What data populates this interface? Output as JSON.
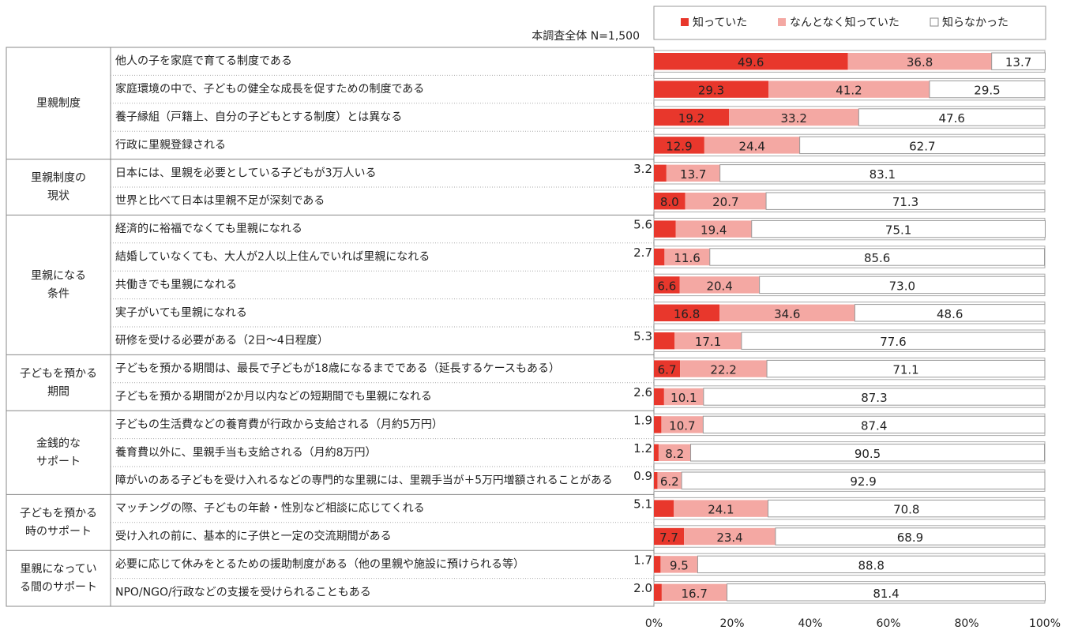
{
  "chart_data": {
    "type": "stacked-barh",
    "subtitle": "本調査全体 N=1,500",
    "groups": [
      {
        "label": "里親制度",
        "categories": [
          "他人の子を家庭で育てる制度である",
          "家庭環境の中で、子どもの健全な成長を促すための制度である",
          "養子縁組（戸籍上、自分の子どもとする制度）とは異なる",
          "行政に里親登録される"
        ]
      },
      {
        "label": "里親制度の\n現状",
        "categories": [
          "日本には、里親を必要としている子どもが3万人いる",
          "世界と比べて日本は里親不足が深刻である"
        ]
      },
      {
        "label": "里親になる\n条件",
        "categories": [
          "経済的に裕福でなくても里親になれる",
          "結婚していなくても、大人が2人以上住んでいれば里親になれる",
          "共働きでも里親になれる",
          "実子がいても里親になれる",
          "研修を受ける必要がある（2日～4日程度）"
        ]
      },
      {
        "label": "子どもを預かる\n期間",
        "categories": [
          "子どもを預かる期間は、最長で子どもが18歳になるまでである（延長するケースもある）",
          "子どもを預かる期間が2か月以内などの短期間でも里親になれる"
        ]
      },
      {
        "label": "金銭的な\nサポート",
        "categories": [
          "子どもの生活費などの養育費が行政から支給される（月約5万円）",
          "養育費以外に、里親手当も支給される（月約8万円）",
          "障がいのある子どもを受け入れるなどの専門的な里親には、里親手当が＋5万円増額されることがある"
        ]
      },
      {
        "label": "子どもを預かる\n時のサポート",
        "categories": [
          "マッチングの際、子どもの年齢・性別など相談に応じてくれる",
          "受け入れの前に、基本的に子供と一定の交流期間がある"
        ]
      },
      {
        "label": "里親になってい\nる間のサポート",
        "categories": [
          "必要に応じて休みをとるための援助制度がある（他の里親や施設に預けられる等）",
          "NPO/NGO/行政などの支援を受けられることもある"
        ]
      }
    ],
    "series": [
      {
        "name": "知っていた",
        "color": "#e8372c",
        "values": [
          49.6,
          29.3,
          19.2,
          12.9,
          3.2,
          8.0,
          5.6,
          2.7,
          6.6,
          16.8,
          5.3,
          6.7,
          2.6,
          1.9,
          1.2,
          0.9,
          5.1,
          7.7,
          1.7,
          2.0
        ],
        "value_labels": [
          "49.6",
          "29.3",
          "19.2",
          "12.9",
          "3.2",
          "8.0",
          "5.6",
          "2.7",
          "6.6",
          "16.8",
          "5.3",
          "6.7",
          "2.6",
          "1.9",
          "1.2",
          "0.9",
          "5.1",
          "7.7",
          "1.7",
          "2.0"
        ]
      },
      {
        "name": "なんとなく知っていた",
        "color": "#f4a8a3",
        "values": [
          36.8,
          41.2,
          33.2,
          24.4,
          13.7,
          20.7,
          19.4,
          11.6,
          20.4,
          34.6,
          17.1,
          22.2,
          10.1,
          10.7,
          8.2,
          6.2,
          24.1,
          23.4,
          9.5,
          16.7
        ],
        "value_labels": [
          "36.8",
          "41.2",
          "33.2",
          "24.4",
          "13.7",
          "20.7",
          "19.4",
          "11.6",
          "20.4",
          "34.6",
          "17.1",
          "22.2",
          "10.1",
          "10.7",
          "8.2",
          "6.2",
          "24.1",
          "23.4",
          "9.5",
          "16.7"
        ]
      },
      {
        "name": "知らなかった",
        "color": "#ffffff",
        "values": [
          13.7,
          29.5,
          47.6,
          62.7,
          83.1,
          71.3,
          75.1,
          85.6,
          73.0,
          48.6,
          77.6,
          71.1,
          87.3,
          87.4,
          90.5,
          92.9,
          70.8,
          68.9,
          88.8,
          81.4
        ],
        "value_labels": [
          "13.7",
          "29.5",
          "47.6",
          "62.7",
          "83.1",
          "71.3",
          "75.1",
          "85.6",
          "73.0",
          "48.6",
          "77.6",
          "71.1",
          "87.3",
          "87.4",
          "90.5",
          "92.9",
          "70.8",
          "68.9",
          "88.8",
          "81.4"
        ]
      }
    ],
    "xlim": [
      0,
      100
    ],
    "xticks": [
      {
        "value": 0,
        "label": "0%"
      },
      {
        "value": 20,
        "label": "20%"
      },
      {
        "value": 40,
        "label": "40%"
      },
      {
        "value": 60,
        "label": "60%"
      },
      {
        "value": 80,
        "label": "80%"
      },
      {
        "value": 100,
        "label": "100%"
      }
    ]
  }
}
